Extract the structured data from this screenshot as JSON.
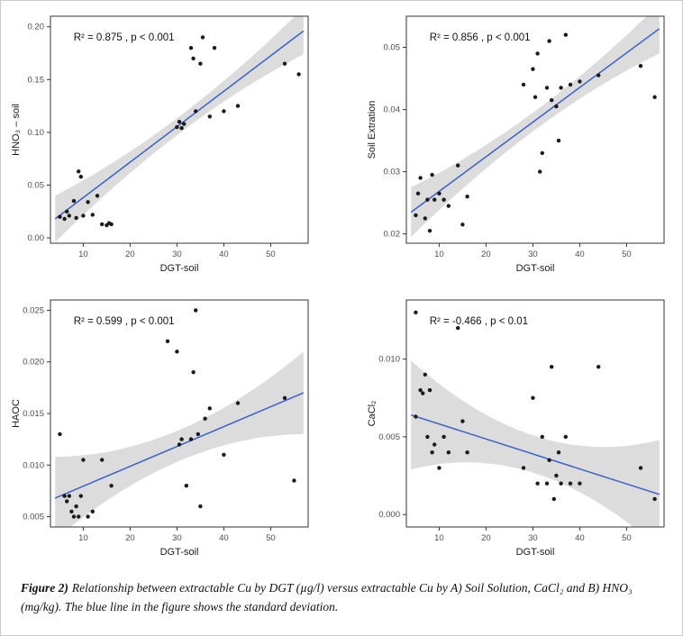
{
  "page": {
    "caption": {
      "label": "Figure 2)",
      "text": "Relationship between extractable Cu by DGT (µg/l) versus extractable Cu by A) Soil Solution, CaCl₂ and B) HNO₃ (mg/kg). The blue line in the figure shows the standard deviation."
    }
  },
  "colors": {
    "regression_line": "#3a5fcd",
    "confidence_band": "#d8d8d8",
    "points": "#1a1a1a",
    "axis": "#333333",
    "tick_label": "#4d4d4d"
  },
  "chart_data": [
    {
      "id": "hno3-soil",
      "type": "scatter",
      "annotation": "R² = 0.875 , p < 0.001",
      "xlabel": "DGT-soil",
      "ylabel": "HNO₃ – soil",
      "xlim": [
        3,
        58
      ],
      "ylim": [
        -0.005,
        0.21
      ],
      "xticks": [
        10,
        20,
        30,
        40,
        50
      ],
      "xtick_labels": [
        "10",
        "20",
        "30",
        "40",
        "50"
      ],
      "yticks": [
        0.0,
        0.05,
        0.1,
        0.15,
        0.2
      ],
      "ytick_labels": [
        "0.00",
        "0.05",
        "0.10",
        "0.15",
        "0.20"
      ],
      "points": [
        [
          5,
          0.02
        ],
        [
          6,
          0.018
        ],
        [
          6.5,
          0.025
        ],
        [
          7,
          0.021
        ],
        [
          8,
          0.035
        ],
        [
          8.5,
          0.019
        ],
        [
          9,
          0.063
        ],
        [
          9.5,
          0.058
        ],
        [
          10,
          0.021
        ],
        [
          11,
          0.034
        ],
        [
          12,
          0.022
        ],
        [
          13,
          0.04
        ],
        [
          14,
          0.013
        ],
        [
          15,
          0.012
        ],
        [
          15.5,
          0.014
        ],
        [
          16,
          0.013
        ],
        [
          30,
          0.105
        ],
        [
          30.5,
          0.11
        ],
        [
          31,
          0.104
        ],
        [
          31.5,
          0.108
        ],
        [
          33,
          0.18
        ],
        [
          33.5,
          0.17
        ],
        [
          34,
          0.12
        ],
        [
          35,
          0.165
        ],
        [
          35.5,
          0.19
        ],
        [
          37,
          0.115
        ],
        [
          38,
          0.18
        ],
        [
          40,
          0.12
        ],
        [
          43,
          0.125
        ],
        [
          53,
          0.165
        ],
        [
          56,
          0.155
        ]
      ],
      "regression": {
        "x1": 4,
        "y1": 0.018,
        "x2": 57,
        "y2": 0.196
      },
      "band_mid": 0.008,
      "band_end": 0.022
    },
    {
      "id": "soil-extration",
      "type": "scatter",
      "annotation": "R² = 0.856 , p < 0.001",
      "xlabel": "DGT-soil",
      "ylabel": "Soil Extration",
      "xlim": [
        3,
        58
      ],
      "ylim": [
        0.0185,
        0.055
      ],
      "xticks": [
        10,
        20,
        30,
        40,
        50
      ],
      "xtick_labels": [
        "10",
        "20",
        "30",
        "40",
        "50"
      ],
      "yticks": [
        0.02,
        0.03,
        0.04,
        0.05
      ],
      "ytick_labels": [
        "0.02",
        "0.03",
        "0.04",
        "0.05"
      ],
      "points": [
        [
          5,
          0.023
        ],
        [
          5.5,
          0.0265
        ],
        [
          6,
          0.029
        ],
        [
          7,
          0.0225
        ],
        [
          7.5,
          0.0255
        ],
        [
          8,
          0.0205
        ],
        [
          8.5,
          0.0295
        ],
        [
          9,
          0.0255
        ],
        [
          10,
          0.0265
        ],
        [
          11,
          0.0255
        ],
        [
          12,
          0.0245
        ],
        [
          14,
          0.031
        ],
        [
          15,
          0.0215
        ],
        [
          16,
          0.026
        ],
        [
          28,
          0.044
        ],
        [
          30,
          0.0465
        ],
        [
          30.5,
          0.042
        ],
        [
          31,
          0.049
        ],
        [
          31.5,
          0.03
        ],
        [
          32,
          0.033
        ],
        [
          33,
          0.0435
        ],
        [
          33.5,
          0.051
        ],
        [
          34,
          0.0415
        ],
        [
          35,
          0.0405
        ],
        [
          35.5,
          0.035
        ],
        [
          36,
          0.0435
        ],
        [
          37,
          0.052
        ],
        [
          38,
          0.044
        ],
        [
          40,
          0.0445
        ],
        [
          44,
          0.0455
        ],
        [
          53,
          0.047
        ],
        [
          56,
          0.042
        ]
      ],
      "regression": {
        "x1": 4,
        "y1": 0.0235,
        "x2": 57,
        "y2": 0.053
      },
      "band_mid": 0.0015,
      "band_end": 0.004
    },
    {
      "id": "haoc",
      "type": "scatter",
      "annotation": "R² = 0.599 , p < 0.001",
      "xlabel": "DGT-soil",
      "ylabel": "HAOC",
      "xlim": [
        3,
        58
      ],
      "ylim": [
        0.004,
        0.026
      ],
      "xticks": [
        10,
        20,
        30,
        40,
        50
      ],
      "xtick_labels": [
        "10",
        "20",
        "30",
        "40",
        "50"
      ],
      "yticks": [
        0.005,
        0.01,
        0.015,
        0.02,
        0.025
      ],
      "ytick_labels": [
        "0.005",
        "0.010",
        "0.015",
        "0.020",
        "0.025"
      ],
      "points": [
        [
          5,
          0.013
        ],
        [
          6,
          0.007
        ],
        [
          6.5,
          0.0065
        ],
        [
          7,
          0.007
        ],
        [
          7.5,
          0.0055
        ],
        [
          8,
          0.005
        ],
        [
          8.5,
          0.006
        ],
        [
          9,
          0.005
        ],
        [
          9.5,
          0.007
        ],
        [
          10,
          0.0105
        ],
        [
          11,
          0.005
        ],
        [
          12,
          0.0055
        ],
        [
          14,
          0.0105
        ],
        [
          16,
          0.008
        ],
        [
          28,
          0.022
        ],
        [
          30,
          0.021
        ],
        [
          30.5,
          0.012
        ],
        [
          31,
          0.0125
        ],
        [
          32,
          0.008
        ],
        [
          33,
          0.0125
        ],
        [
          33.5,
          0.019
        ],
        [
          34,
          0.025
        ],
        [
          34.5,
          0.013
        ],
        [
          35,
          0.006
        ],
        [
          36,
          0.0145
        ],
        [
          37,
          0.0155
        ],
        [
          40,
          0.011
        ],
        [
          43,
          0.016
        ],
        [
          53,
          0.0165
        ],
        [
          55,
          0.0085
        ]
      ],
      "regression": {
        "x1": 4,
        "y1": 0.0068,
        "x2": 57,
        "y2": 0.017
      },
      "band_mid": 0.0015,
      "band_end": 0.004
    },
    {
      "id": "cacl2",
      "type": "scatter",
      "annotation": "R² = -0.466 , p < 0.01",
      "xlabel": "DGT-soil",
      "ylabel": "CaCl₂",
      "xlim": [
        3,
        58
      ],
      "ylim": [
        -0.0008,
        0.0138
      ],
      "xticks": [
        10,
        20,
        30,
        40,
        50
      ],
      "xtick_labels": [
        "10",
        "20",
        "30",
        "40",
        "50"
      ],
      "yticks": [
        0.0,
        0.005,
        0.01
      ],
      "ytick_labels": [
        "0.000",
        "0.005",
        "0.010"
      ],
      "points": [
        [
          5,
          0.013
        ],
        [
          5,
          0.0063
        ],
        [
          6,
          0.008
        ],
        [
          6.5,
          0.0078
        ],
        [
          7,
          0.009
        ],
        [
          7.5,
          0.005
        ],
        [
          8,
          0.008
        ],
        [
          8.5,
          0.004
        ],
        [
          9,
          0.0045
        ],
        [
          10,
          0.003
        ],
        [
          11,
          0.005
        ],
        [
          12,
          0.004
        ],
        [
          14,
          0.012
        ],
        [
          15,
          0.006
        ],
        [
          16,
          0.004
        ],
        [
          28,
          0.003
        ],
        [
          30,
          0.0075
        ],
        [
          31,
          0.002
        ],
        [
          32,
          0.005
        ],
        [
          33,
          0.002
        ],
        [
          33.5,
          0.0035
        ],
        [
          34,
          0.0095
        ],
        [
          34.5,
          0.001
        ],
        [
          35,
          0.0025
        ],
        [
          35.5,
          0.004
        ],
        [
          36,
          0.002
        ],
        [
          37,
          0.005
        ],
        [
          38,
          0.002
        ],
        [
          40,
          0.002
        ],
        [
          44,
          0.0095
        ],
        [
          53,
          0.003
        ],
        [
          56,
          0.001
        ]
      ],
      "regression": {
        "x1": 4,
        "y1": 0.0064,
        "x2": 57,
        "y2": 0.0013
      },
      "band_mid": 0.0012,
      "band_end": 0.0035
    }
  ]
}
